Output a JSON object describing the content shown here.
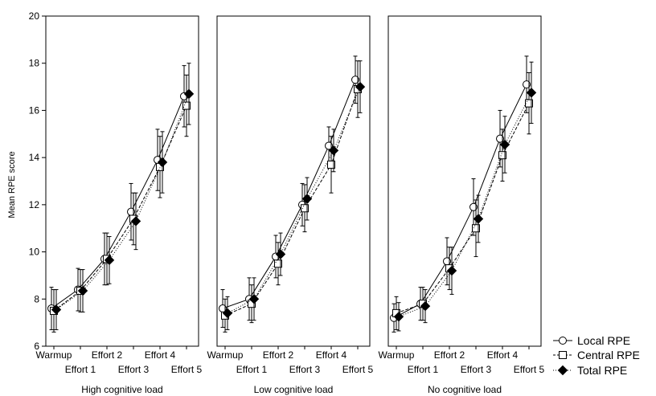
{
  "chart_data": {
    "type": "line",
    "ylabel": "Mean RPE score",
    "ylim": [
      6,
      20
    ],
    "yticks": [
      6,
      8,
      10,
      12,
      14,
      16,
      18,
      20
    ],
    "categories": [
      "Warmup",
      "Effort 1",
      "Effort 2",
      "Effort 3",
      "Effort 4",
      "Effort 5"
    ],
    "grid": false,
    "legend_position": "bottom-right",
    "legend": [
      {
        "label": "Local RPE",
        "marker": "circle"
      },
      {
        "label": "Central RPE",
        "marker": "square"
      },
      {
        "label": "Total RPE",
        "marker": "diamond"
      }
    ],
    "panels": [
      {
        "label": "High cognitive load",
        "series": [
          {
            "name": "Local RPE",
            "values": [
              7.6,
              8.4,
              9.7,
              11.7,
              13.9,
              16.6
            ],
            "errors": [
              0.9,
              0.9,
              1.1,
              1.2,
              1.3,
              1.3
            ]
          },
          {
            "name": "Central RPE",
            "values": [
              7.5,
              8.35,
              9.7,
              11.4,
              13.6,
              16.2
            ],
            "errors": [
              0.9,
              0.9,
              1.1,
              1.1,
              1.3,
              1.3
            ]
          },
          {
            "name": "Total RPE",
            "values": [
              7.55,
              8.35,
              9.65,
              11.3,
              13.8,
              16.7
            ],
            "errors": [
              0.85,
              0.9,
              1.0,
              1.2,
              1.3,
              1.3
            ]
          }
        ]
      },
      {
        "label": "Low cognitive load",
        "series": [
          {
            "name": "Local RPE",
            "values": [
              7.6,
              8.0,
              9.8,
              12.0,
              14.5,
              17.3
            ],
            "errors": [
              0.8,
              0.9,
              0.9,
              0.9,
              0.8,
              1.0
            ]
          },
          {
            "name": "Central RPE",
            "values": [
              7.3,
              7.8,
              9.5,
              11.85,
              13.7,
              16.9
            ],
            "errors": [
              0.7,
              0.8,
              0.9,
              1.0,
              1.2,
              1.2
            ]
          },
          {
            "name": "Total RPE",
            "values": [
              7.4,
              8.0,
              9.9,
              12.25,
              14.3,
              17.0
            ],
            "errors": [
              0.7,
              0.9,
              0.9,
              0.9,
              0.9,
              1.1
            ]
          }
        ]
      },
      {
        "label": "No cognitive load",
        "series": [
          {
            "name": "Local RPE",
            "values": [
              7.2,
              7.8,
              9.6,
              11.9,
              14.8,
              17.1
            ],
            "errors": [
              0.6,
              0.7,
              1.0,
              1.2,
              1.2,
              1.2
            ]
          },
          {
            "name": "Central RPE",
            "values": [
              7.4,
              7.8,
              9.3,
              11.0,
              14.1,
              16.3
            ],
            "errors": [
              0.7,
              0.7,
              0.9,
              1.2,
              1.1,
              1.3
            ]
          },
          {
            "name": "Total RPE",
            "values": [
              7.25,
              7.7,
              9.2,
              11.4,
              14.55,
              16.75
            ],
            "errors": [
              0.6,
              0.7,
              1.0,
              1.0,
              1.2,
              1.3
            ]
          }
        ]
      }
    ]
  }
}
